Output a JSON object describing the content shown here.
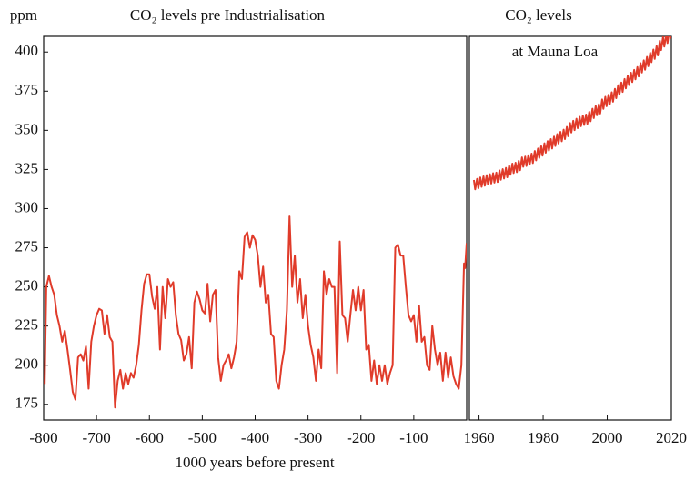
{
  "chart_data": [
    {
      "type": "line",
      "title": "CO₂ levels pre Industrialisation",
      "y_label": "ppm",
      "x_label": "1000 years before present",
      "color": "#e03b2a",
      "xlim": [
        -800,
        0
      ],
      "ylim": [
        165,
        410
      ],
      "xticks": [
        -800,
        -700,
        -600,
        -500,
        -400,
        -300,
        -200,
        -100
      ],
      "yticks": [
        175,
        200,
        225,
        250,
        275,
        300,
        325,
        350,
        375,
        400
      ],
      "x": [
        -798,
        -795,
        -790,
        -785,
        -780,
        -775,
        -770,
        -765,
        -760,
        -755,
        -750,
        -745,
        -740,
        -735,
        -730,
        -725,
        -720,
        -715,
        -710,
        -705,
        -700,
        -695,
        -690,
        -685,
        -680,
        -675,
        -670,
        -665,
        -660,
        -655,
        -650,
        -645,
        -640,
        -635,
        -630,
        -625,
        -620,
        -615,
        -610,
        -605,
        -600,
        -595,
        -590,
        -585,
        -580,
        -575,
        -570,
        -565,
        -560,
        -555,
        -550,
        -545,
        -540,
        -535,
        -530,
        -525,
        -520,
        -515,
        -510,
        -505,
        -500,
        -495,
        -490,
        -485,
        -480,
        -475,
        -470,
        -465,
        -460,
        -455,
        -450,
        -445,
        -440,
        -435,
        -430,
        -425,
        -420,
        -415,
        -410,
        -405,
        -400,
        -395,
        -390,
        -385,
        -380,
        -375,
        -370,
        -365,
        -360,
        -355,
        -350,
        -345,
        -340,
        -335,
        -330,
        -325,
        -320,
        -315,
        -310,
        -305,
        -300,
        -295,
        -290,
        -285,
        -280,
        -275,
        -270,
        -265,
        -260,
        -255,
        -250,
        -245,
        -240,
        -235,
        -230,
        -225,
        -220,
        -215,
        -210,
        -205,
        -200,
        -195,
        -190,
        -185,
        -180,
        -175,
        -170,
        -165,
        -160,
        -155,
        -150,
        -145,
        -140,
        -135,
        -130,
        -125,
        -120,
        -115,
        -110,
        -105,
        -100,
        -95,
        -90,
        -85,
        -80,
        -75,
        -70,
        -65,
        -60,
        -55,
        -50,
        -45,
        -40,
        -35,
        -30,
        -25,
        -20,
        -15,
        -10,
        -5,
        -3,
        0
      ],
      "values": [
        188,
        250,
        257,
        250,
        245,
        232,
        225,
        215,
        222,
        210,
        197,
        183,
        178,
        205,
        207,
        203,
        212,
        185,
        215,
        225,
        232,
        236,
        235,
        220,
        232,
        218,
        215,
        173,
        190,
        197,
        185,
        195,
        188,
        195,
        192,
        200,
        213,
        235,
        252,
        258,
        258,
        244,
        236,
        250,
        210,
        250,
        230,
        255,
        250,
        253,
        232,
        220,
        216,
        203,
        207,
        218,
        198,
        240,
        247,
        242,
        235,
        233,
        252,
        228,
        245,
        248,
        205,
        190,
        200,
        203,
        207,
        198,
        205,
        215,
        260,
        255,
        282,
        285,
        275,
        283,
        280,
        270,
        250,
        263,
        240,
        245,
        220,
        218,
        190,
        185,
        200,
        210,
        235,
        295,
        250,
        270,
        240,
        255,
        230,
        245,
        225,
        213,
        205,
        190,
        210,
        198,
        260,
        245,
        255,
        250,
        250,
        195,
        279,
        232,
        230,
        215,
        232,
        248,
        235,
        250,
        235,
        248,
        210,
        213,
        190,
        203,
        188,
        200,
        190,
        200,
        188,
        195,
        200,
        275,
        277,
        270,
        270,
        250,
        232,
        228,
        232,
        215,
        238,
        215,
        218,
        200,
        197,
        225,
        210,
        200,
        208,
        190,
        208,
        192,
        205,
        193,
        188,
        185,
        200,
        265,
        262,
        278
      ]
    },
    {
      "type": "line",
      "title": "CO₂ levels",
      "annotation": "at Mauna Loa",
      "color": "#e03b2a",
      "xlim": [
        1957,
        2020
      ],
      "ylim": [
        165,
        410
      ],
      "xticks": [
        1960,
        1980,
        2000,
        2020
      ],
      "x": [
        1958.4,
        1958.8,
        1959.4,
        1959.8,
        1960.4,
        1960.8,
        1961.4,
        1961.8,
        1962.4,
        1962.8,
        1963.4,
        1963.8,
        1964.4,
        1964.8,
        1965.4,
        1965.8,
        1966.4,
        1966.8,
        1967.4,
        1967.8,
        1968.4,
        1968.8,
        1969.4,
        1969.8,
        1970.4,
        1970.8,
        1971.4,
        1971.8,
        1972.4,
        1972.8,
        1973.4,
        1973.8,
        1974.4,
        1974.8,
        1975.4,
        1975.8,
        1976.4,
        1976.8,
        1977.4,
        1977.8,
        1978.4,
        1978.8,
        1979.4,
        1979.8,
        1980.4,
        1980.8,
        1981.4,
        1981.8,
        1982.4,
        1982.8,
        1983.4,
        1983.8,
        1984.4,
        1984.8,
        1985.4,
        1985.8,
        1986.4,
        1986.8,
        1987.4,
        1987.8,
        1988.4,
        1988.8,
        1989.4,
        1989.8,
        1990.4,
        1990.8,
        1991.4,
        1991.8,
        1992.4,
        1992.8,
        1993.4,
        1993.8,
        1994.4,
        1994.8,
        1995.4,
        1995.8,
        1996.4,
        1996.8,
        1997.4,
        1997.8,
        1998.4,
        1998.8,
        1999.4,
        1999.8,
        2000.4,
        2000.8,
        2001.4,
        2001.8,
        2002.4,
        2002.8,
        2003.4,
        2003.8,
        2004.4,
        2004.8,
        2005.4,
        2005.8,
        2006.4,
        2006.8,
        2007.4,
        2007.8,
        2008.4,
        2008.8,
        2009.4,
        2009.8,
        2010.4,
        2010.8,
        2011.4,
        2011.8,
        2012.4,
        2012.8,
        2013.4,
        2013.8,
        2014.4,
        2014.8,
        2015.4,
        2015.8,
        2016.4,
        2016.8,
        2017.4,
        2017.8,
        2018.4,
        2018.8,
        2019.4,
        2019.8
      ],
      "values": [
        318.3,
        312.3,
        319.0,
        313.0,
        319.9,
        313.9,
        320.6,
        314.6,
        321.4,
        315.4,
        322.0,
        316.0,
        322.6,
        316.6,
        323.0,
        317.0,
        324.4,
        318.4,
        325.2,
        319.2,
        326.0,
        320.0,
        327.6,
        321.6,
        328.7,
        322.7,
        329.3,
        323.3,
        330.5,
        324.5,
        332.7,
        326.7,
        333.2,
        327.2,
        334.1,
        328.1,
        335.1,
        329.1,
        336.8,
        330.8,
        338.4,
        332.4,
        339.8,
        333.8,
        341.7,
        335.7,
        343.1,
        337.1,
        344.4,
        338.4,
        346.0,
        340.0,
        347.6,
        341.6,
        349.0,
        343.0,
        350.4,
        344.4,
        352.2,
        346.2,
        354.6,
        348.6,
        356.1,
        350.1,
        357.4,
        351.4,
        358.6,
        352.6,
        359.4,
        353.4,
        360.1,
        354.1,
        361.8,
        355.8,
        363.8,
        357.8,
        365.6,
        359.6,
        366.7,
        360.7,
        369.7,
        363.7,
        371.4,
        365.4,
        372.7,
        366.7,
        374.3,
        368.3,
        376.5,
        370.5,
        378.8,
        372.8,
        380.5,
        374.5,
        382.8,
        376.8,
        384.9,
        378.9,
        386.8,
        380.8,
        388.6,
        382.6,
        390.4,
        384.4,
        392.9,
        386.9,
        394.7,
        388.7,
        396.9,
        390.9,
        399.5,
        393.5,
        401.6,
        395.6,
        403.8,
        397.8,
        407.2,
        401.2,
        409.5,
        403.5,
        411.7,
        405.7,
        414.4,
        408.4
      ]
    }
  ]
}
